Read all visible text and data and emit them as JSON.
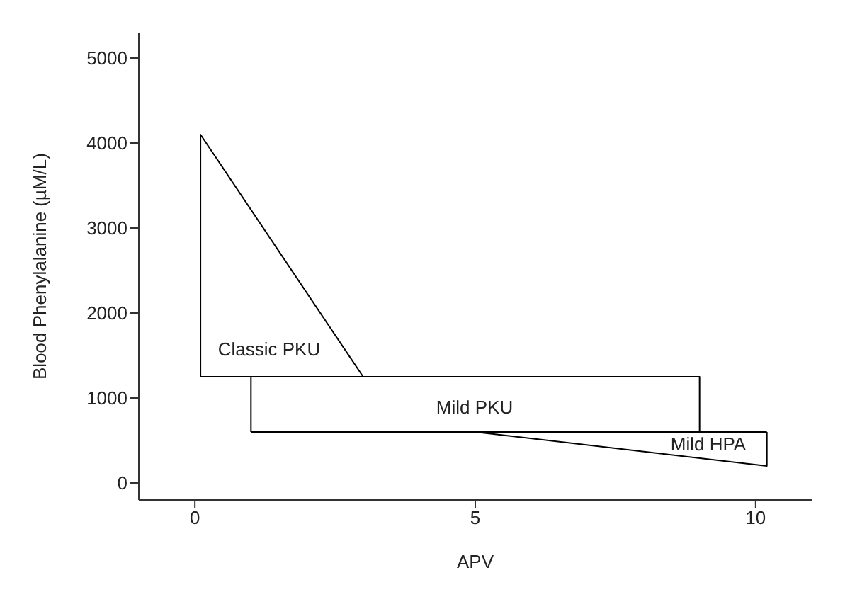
{
  "chart_data": {
    "type": "line",
    "xlabel": "APV",
    "ylabel": "Blood Phenylalanine (µM/L)",
    "xlim": [
      -1,
      11
    ],
    "ylim": [
      -200,
      5300
    ],
    "xticks": [
      0,
      5,
      10
    ],
    "yticks": [
      0,
      1000,
      2000,
      3000,
      4000,
      5000
    ],
    "series": [
      {
        "color": "#000000",
        "x": [
          0.1,
          0.1,
          3
        ],
        "values": [
          1250,
          4100,
          1250
        ]
      },
      {
        "color": "#000000",
        "x": [
          0.1,
          3
        ],
        "values": [
          1250,
          1250
        ]
      },
      {
        "color": "#000000",
        "x": [
          1,
          1,
          9,
          9
        ],
        "values": [
          600,
          1250,
          1250,
          600
        ]
      },
      {
        "color": "#000000",
        "x": [
          1,
          9
        ],
        "values": [
          600,
          600
        ]
      },
      {
        "color": "#000000",
        "x": [
          5,
          10.2
        ],
        "values": [
          600,
          600
        ]
      },
      {
        "color": "#000000",
        "x": [
          5,
          10.2,
          10.2
        ],
        "values": [
          600,
          200,
          600
        ]
      }
    ],
    "annotations": [
      "Classic PKU",
      "Mild PKU",
      "Mild HPA"
    ]
  }
}
